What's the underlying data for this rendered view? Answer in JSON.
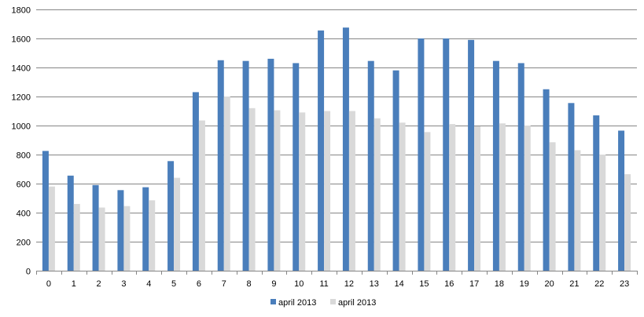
{
  "chart_data": {
    "type": "bar",
    "title": "",
    "xlabel": "",
    "ylabel": "",
    "categories": [
      "0",
      "1",
      "2",
      "3",
      "4",
      "5",
      "6",
      "7",
      "8",
      "9",
      "10",
      "11",
      "12",
      "13",
      "14",
      "15",
      "16",
      "17",
      "18",
      "19",
      "20",
      "21",
      "22",
      "23"
    ],
    "series": [
      {
        "name": "april 2013",
        "color": "#4a7ebb",
        "values": [
          825,
          655,
          590,
          555,
          575,
          755,
          1230,
          1450,
          1445,
          1460,
          1430,
          1655,
          1675,
          1445,
          1380,
          1600,
          1600,
          1590,
          1445,
          1430,
          1250,
          1155,
          1070,
          965
        ]
      },
      {
        "name": "april 2013",
        "color": "#d9d9d9",
        "values": [
          580,
          460,
          435,
          445,
          485,
          640,
          1035,
          1200,
          1120,
          1105,
          1090,
          1100,
          1100,
          1050,
          1020,
          955,
          1010,
          995,
          1015,
          1000,
          885,
          830,
          800,
          665
        ]
      }
    ],
    "ylim": [
      0,
      1800
    ],
    "yticks": [
      "0",
      "200",
      "400",
      "600",
      "800",
      "1000",
      "1200",
      "1400",
      "1600",
      "1800"
    ],
    "grid": true,
    "legend_position": "bottom"
  }
}
